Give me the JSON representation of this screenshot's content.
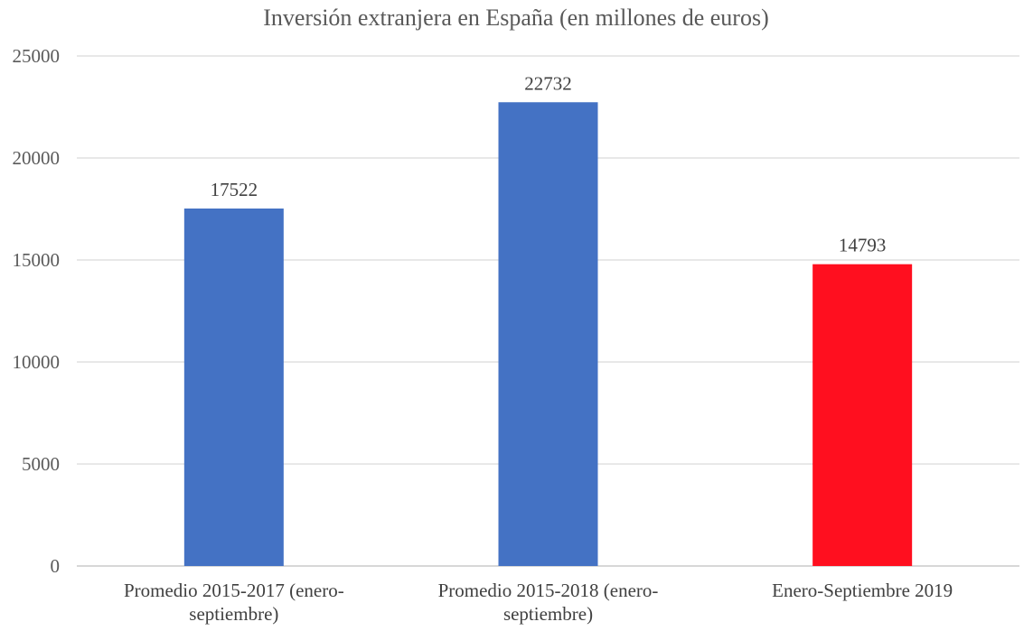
{
  "chart_data": {
    "type": "bar",
    "title": "Inversión extranjera en España (en millones de euros)",
    "categories": [
      [
        "Promedio 2015-2017 (enero-",
        "septiembre)"
      ],
      [
        "Promedio 2015-2018 (enero-",
        "septiembre)"
      ],
      [
        "Enero-Septiembre 2019"
      ]
    ],
    "values": [
      17522,
      22732,
      14793
    ],
    "data_labels": [
      "17522",
      "22732",
      "14793"
    ],
    "bar_colors": [
      "#4472c4",
      "#4472c4",
      "#ff0f1f"
    ],
    "ylim": [
      0,
      25000
    ],
    "yticks": [
      "0",
      "5000",
      "10000",
      "15000",
      "20000",
      "25000"
    ],
    "xlabel": "",
    "ylabel": "",
    "grid": true,
    "legend": "none"
  }
}
